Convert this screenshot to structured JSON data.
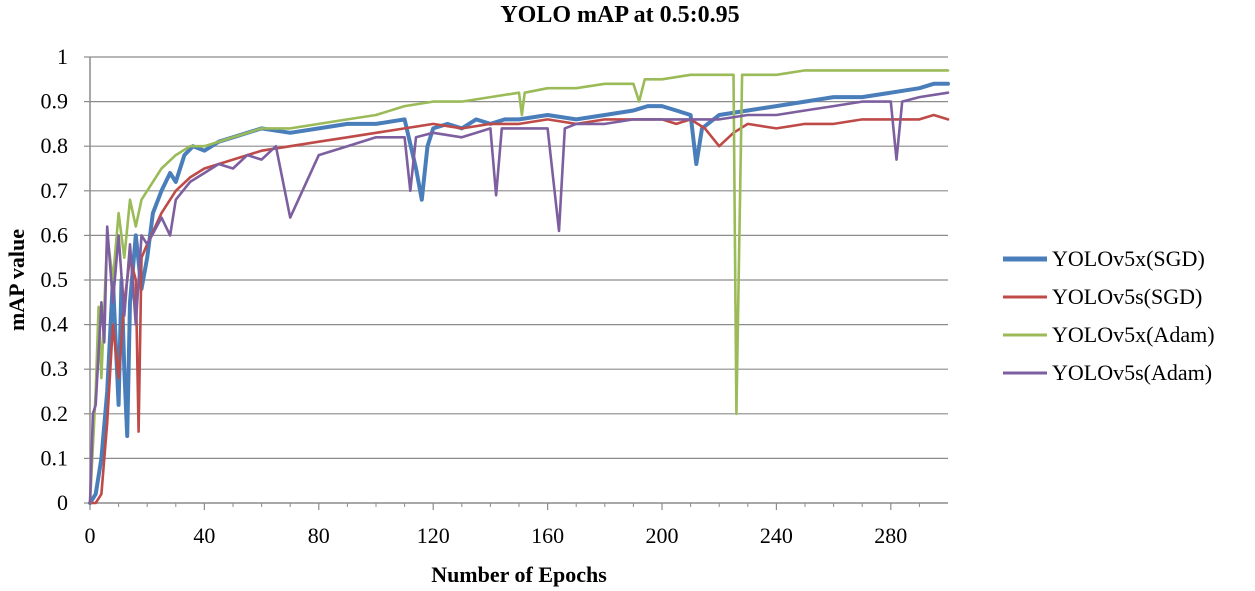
{
  "chart_data": {
    "type": "line",
    "title": "YOLO mAP at 0.5:0.95",
    "xlabel": "Number of Epochs",
    "ylabel": "mAP value",
    "xlim": [
      0,
      300
    ],
    "ylim": [
      0,
      1
    ],
    "xticks": [
      0,
      40,
      80,
      120,
      160,
      200,
      240,
      280
    ],
    "yticks": [
      0,
      0.1,
      0.2,
      0.3,
      0.4,
      0.5,
      0.6,
      0.7,
      0.8,
      0.9,
      1
    ],
    "ytick_labels": [
      "0",
      "0.1",
      "0.2",
      "0.3",
      "0.4",
      "0.5",
      "0.6",
      "0.7",
      "0.8",
      "0.9",
      "1"
    ],
    "grid": "horizontal",
    "legend_position": "right",
    "series": [
      {
        "name": "YOLOv5x(SGD)",
        "color": "#4a7ebb",
        "x": [
          0,
          2,
          4,
          6,
          8,
          10,
          11,
          12,
          13,
          14,
          16,
          18,
          20,
          22,
          25,
          28,
          30,
          33,
          36,
          40,
          45,
          50,
          55,
          60,
          70,
          80,
          90,
          100,
          110,
          114,
          116,
          118,
          120,
          125,
          130,
          135,
          140,
          145,
          150,
          160,
          170,
          180,
          190,
          195,
          200,
          205,
          210,
          212,
          214,
          220,
          230,
          240,
          250,
          260,
          270,
          280,
          290,
          295,
          300
        ],
        "values": [
          0.0,
          0.02,
          0.1,
          0.25,
          0.5,
          0.22,
          0.5,
          0.3,
          0.15,
          0.45,
          0.6,
          0.48,
          0.55,
          0.65,
          0.7,
          0.74,
          0.72,
          0.78,
          0.8,
          0.79,
          0.81,
          0.82,
          0.83,
          0.84,
          0.83,
          0.84,
          0.85,
          0.85,
          0.86,
          0.75,
          0.68,
          0.8,
          0.84,
          0.85,
          0.84,
          0.86,
          0.85,
          0.86,
          0.86,
          0.87,
          0.86,
          0.87,
          0.88,
          0.89,
          0.89,
          0.88,
          0.87,
          0.76,
          0.84,
          0.87,
          0.88,
          0.89,
          0.9,
          0.91,
          0.91,
          0.92,
          0.93,
          0.94,
          0.94
        ]
      },
      {
        "name": "YOLOv5s(SGD)",
        "color": "#be4b48",
        "x": [
          0,
          2,
          4,
          6,
          8,
          10,
          12,
          14,
          16,
          17,
          18,
          20,
          25,
          30,
          35,
          40,
          50,
          60,
          70,
          80,
          90,
          100,
          110,
          120,
          130,
          140,
          150,
          160,
          170,
          180,
          190,
          200,
          205,
          210,
          215,
          220,
          225,
          230,
          240,
          250,
          260,
          270,
          280,
          290,
          295,
          300
        ],
        "values": [
          0.0,
          0.0,
          0.02,
          0.18,
          0.4,
          0.28,
          0.45,
          0.55,
          0.5,
          0.16,
          0.55,
          0.58,
          0.65,
          0.7,
          0.73,
          0.75,
          0.77,
          0.79,
          0.8,
          0.81,
          0.82,
          0.83,
          0.84,
          0.85,
          0.84,
          0.85,
          0.85,
          0.86,
          0.85,
          0.86,
          0.86,
          0.86,
          0.85,
          0.86,
          0.84,
          0.8,
          0.83,
          0.85,
          0.84,
          0.85,
          0.85,
          0.86,
          0.86,
          0.86,
          0.87,
          0.86
        ]
      },
      {
        "name": "YOLOv5x(Adam)",
        "color": "#9bbb59",
        "x": [
          0,
          2,
          3,
          4,
          6,
          8,
          10,
          12,
          14,
          16,
          18,
          20,
          25,
          30,
          35,
          40,
          50,
          60,
          70,
          80,
          90,
          100,
          110,
          120,
          130,
          140,
          150,
          151,
          152,
          160,
          170,
          180,
          190,
          192,
          194,
          200,
          210,
          220,
          225,
          226,
          228,
          230,
          240,
          250,
          260,
          270,
          280,
          290,
          300
        ],
        "values": [
          0.0,
          0.25,
          0.44,
          0.28,
          0.6,
          0.5,
          0.65,
          0.55,
          0.68,
          0.62,
          0.68,
          0.7,
          0.75,
          0.78,
          0.8,
          0.8,
          0.82,
          0.84,
          0.84,
          0.85,
          0.86,
          0.87,
          0.89,
          0.9,
          0.9,
          0.91,
          0.92,
          0.87,
          0.92,
          0.93,
          0.93,
          0.94,
          0.94,
          0.9,
          0.95,
          0.95,
          0.96,
          0.96,
          0.96,
          0.2,
          0.96,
          0.96,
          0.96,
          0.97,
          0.97,
          0.97,
          0.97,
          0.97,
          0.97
        ]
      },
      {
        "name": "YOLOv5s(Adam)",
        "color": "#7d5fa0",
        "x": [
          0,
          1,
          2,
          4,
          5,
          6,
          8,
          10,
          12,
          14,
          16,
          18,
          20,
          25,
          28,
          30,
          35,
          40,
          45,
          50,
          55,
          60,
          65,
          70,
          80,
          90,
          100,
          110,
          112,
          114,
          120,
          130,
          140,
          142,
          144,
          150,
          160,
          164,
          166,
          170,
          180,
          190,
          200,
          210,
          220,
          230,
          240,
          250,
          260,
          270,
          280,
          282,
          284,
          290,
          300
        ],
        "values": [
          0.0,
          0.2,
          0.22,
          0.45,
          0.36,
          0.62,
          0.45,
          0.6,
          0.42,
          0.58,
          0.4,
          0.6,
          0.58,
          0.64,
          0.6,
          0.68,
          0.72,
          0.74,
          0.76,
          0.75,
          0.78,
          0.77,
          0.8,
          0.64,
          0.78,
          0.8,
          0.82,
          0.82,
          0.7,
          0.82,
          0.83,
          0.82,
          0.84,
          0.69,
          0.84,
          0.84,
          0.84,
          0.61,
          0.84,
          0.85,
          0.85,
          0.86,
          0.86,
          0.86,
          0.86,
          0.87,
          0.87,
          0.88,
          0.89,
          0.9,
          0.9,
          0.77,
          0.9,
          0.91,
          0.92
        ]
      }
    ]
  }
}
